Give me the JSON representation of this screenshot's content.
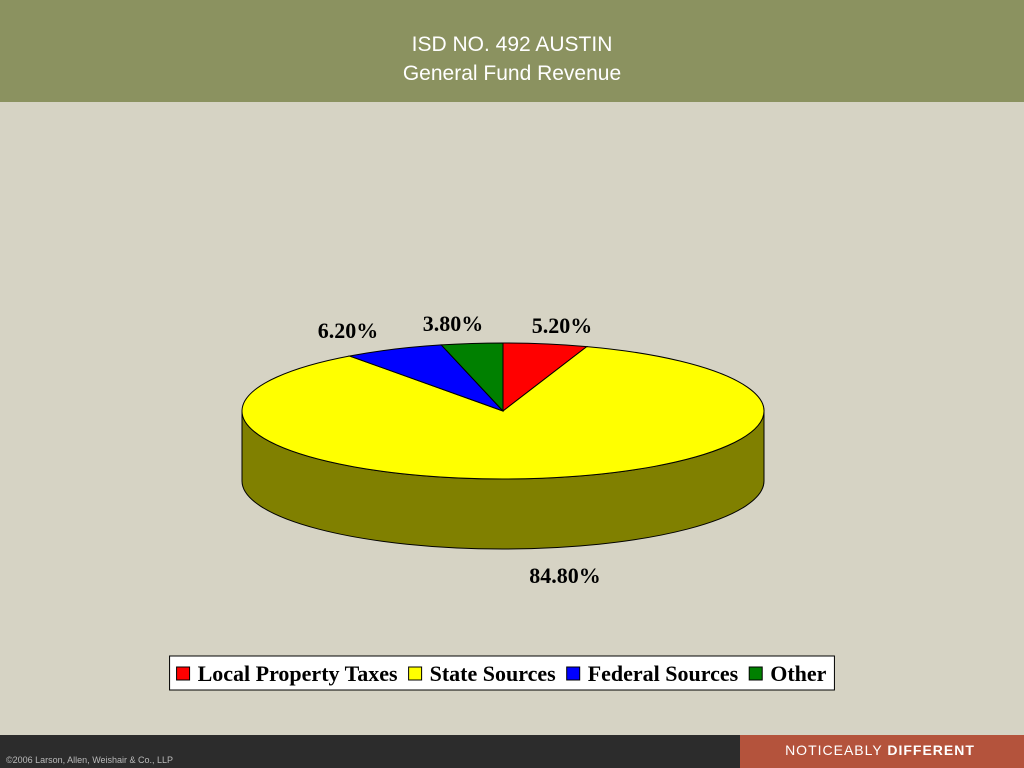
{
  "chart_data": {
    "type": "pie",
    "title": "ISD NO. 492 AUSTIN",
    "subtitle": "General Fund Revenue",
    "categories": [
      "Local Property Taxes",
      "State Sources",
      "Federal Sources",
      "Other"
    ],
    "values": [
      5.2,
      84.8,
      6.2,
      3.8
    ],
    "value_labels": [
      "5.20%",
      "84.80%",
      "6.20%",
      "3.80%"
    ],
    "colors": [
      "#ff0000",
      "#ffff00",
      "#0000ff",
      "#008000"
    ],
    "legend": "bottom"
  },
  "footer": {
    "copyright": "©2006 Larson, Allen, Weishair & Co., LLP",
    "slogan": "NOTICEABLY",
    "slogan_bold": "DIFFERENT"
  }
}
